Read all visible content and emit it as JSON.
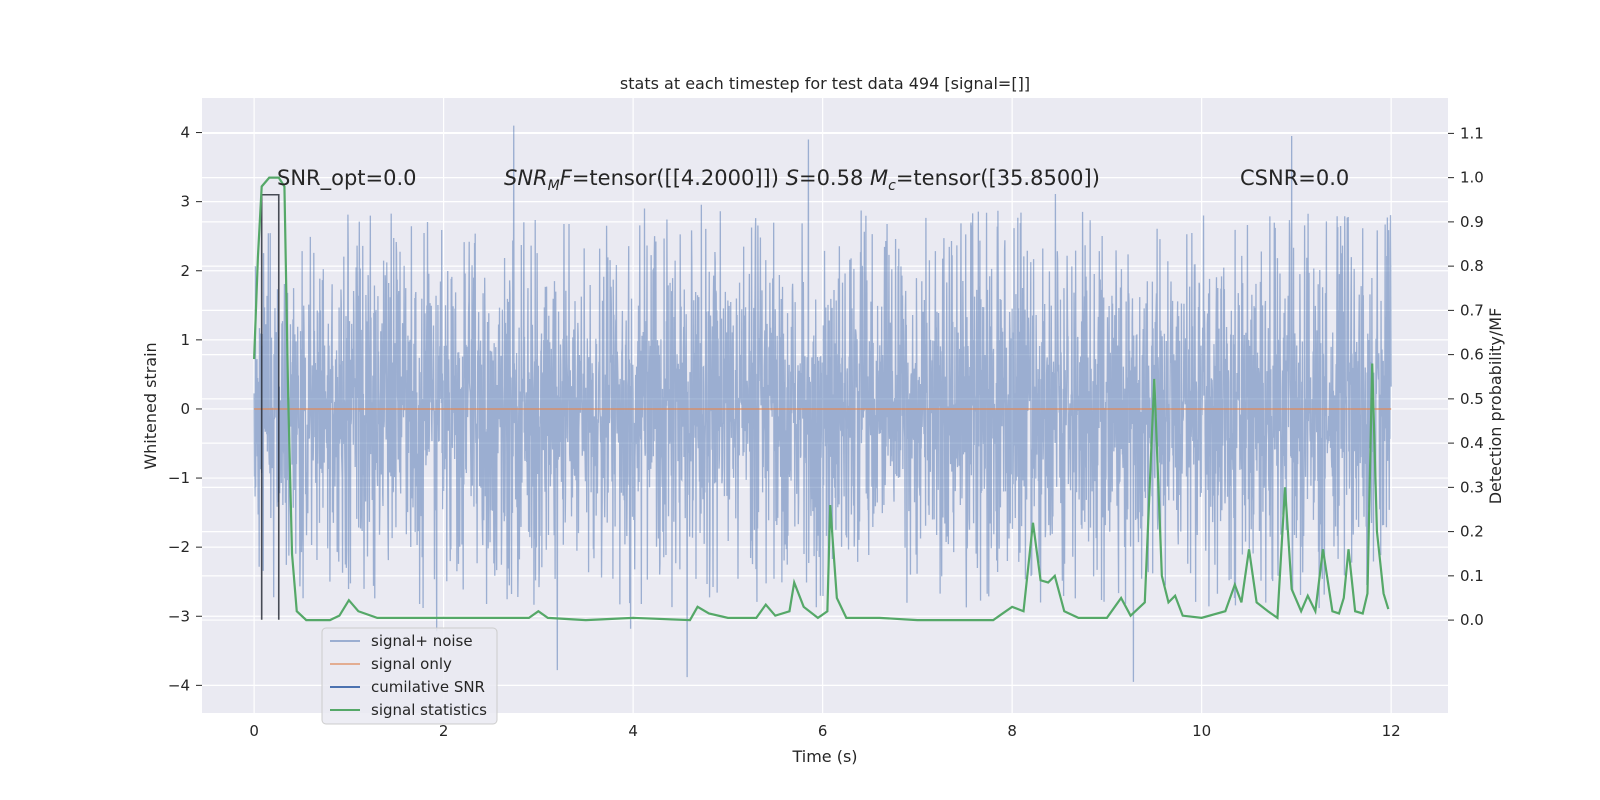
{
  "chart_data": {
    "type": "line",
    "title": "stats at each timestep for test data 494 [signal=[]]",
    "xlabel": "Time (s)",
    "ylabel": "Whitened strain",
    "y2label": "Detection probability/MF",
    "xlim": [
      -0.55,
      12.6
    ],
    "ylim": [
      -4.4,
      4.5
    ],
    "y2lim": [
      -0.21,
      1.18
    ],
    "x_ticks": [
      0,
      2,
      4,
      6,
      8,
      10,
      12
    ],
    "x_tick_labels": [
      "0",
      "2",
      "4",
      "6",
      "8",
      "10",
      "12"
    ],
    "y_ticks": [
      -4,
      -3,
      -2,
      -1,
      0,
      1,
      2,
      3,
      4
    ],
    "y_tick_labels": [
      "−4",
      "−3",
      "−2",
      "−1",
      "0",
      "1",
      "2",
      "3",
      "4"
    ],
    "y2_ticks": [
      0.0,
      0.1,
      0.2,
      0.3,
      0.4,
      0.5,
      0.6,
      0.7,
      0.8,
      0.9,
      1.0,
      1.1
    ],
    "y2_tick_labels": [
      "0.0",
      "0.1",
      "0.2",
      "0.3",
      "0.4",
      "0.5",
      "0.6",
      "0.7",
      "0.8",
      "0.9",
      "1.0",
      "1.1"
    ],
    "grid": true,
    "legend_position": "lower-left",
    "annotations": [
      {
        "text": "SNR_opt=0.0"
      },
      {
        "text": "SNRₘF=tensor([[4.2000]])  S=0.58   Mᶜ=tensor([35.8500])"
      },
      {
        "text": "CSNR=0.0"
      }
    ],
    "series": [
      {
        "name": "signal+ noise",
        "color": "#4c72b0",
        "kind": "noise",
        "t_range": [
          0,
          12
        ],
        "typical_range": [
          -1.4,
          1.4
        ],
        "extremes_min": -3.9,
        "extremes_max": 4.1,
        "notable_peaks": [
          {
            "t": 2.74,
            "y": 4.1
          },
          {
            "t": 5.85,
            "y": 3.9
          },
          {
            "t": 10.95,
            "y": 3.95
          },
          {
            "t": 9.28,
            "y": -3.95
          },
          {
            "t": 4.57,
            "y": -3.88
          },
          {
            "t": 3.2,
            "y": -3.78
          }
        ]
      },
      {
        "name": "signal only",
        "color": "#dd8452",
        "values": [
          [
            0,
            0
          ],
          [
            12,
            0
          ]
        ]
      },
      {
        "name": "cumilative SNR",
        "color": "#4c72b0",
        "values": [
          [
            0.08,
            -3.05
          ],
          [
            0.08,
            3.1
          ],
          [
            0.26,
            3.1
          ],
          [
            0.26,
            -3.05
          ]
        ]
      },
      {
        "name": "signal statistics",
        "color": "#55a868",
        "axis": "right",
        "values": [
          [
            0.0,
            0.59
          ],
          [
            0.04,
            0.82
          ],
          [
            0.08,
            0.98
          ],
          [
            0.16,
            1.0
          ],
          [
            0.26,
            1.0
          ],
          [
            0.32,
            0.98
          ],
          [
            0.36,
            0.5
          ],
          [
            0.4,
            0.15
          ],
          [
            0.45,
            0.02
          ],
          [
            0.55,
            0.0
          ],
          [
            0.8,
            0.0
          ],
          [
            0.9,
            0.01
          ],
          [
            1.0,
            0.045
          ],
          [
            1.1,
            0.02
          ],
          [
            1.3,
            0.005
          ],
          [
            1.6,
            0.005
          ],
          [
            2.0,
            0.005
          ],
          [
            2.5,
            0.005
          ],
          [
            2.9,
            0.005
          ],
          [
            3.0,
            0.02
          ],
          [
            3.1,
            0.005
          ],
          [
            3.5,
            0.0
          ],
          [
            4.0,
            0.005
          ],
          [
            4.6,
            0.0
          ],
          [
            4.68,
            0.03
          ],
          [
            4.8,
            0.015
          ],
          [
            5.0,
            0.005
          ],
          [
            5.3,
            0.005
          ],
          [
            5.4,
            0.035
          ],
          [
            5.5,
            0.01
          ],
          [
            5.65,
            0.02
          ],
          [
            5.7,
            0.085
          ],
          [
            5.8,
            0.03
          ],
          [
            5.95,
            0.005
          ],
          [
            6.05,
            0.02
          ],
          [
            6.08,
            0.26
          ],
          [
            6.15,
            0.05
          ],
          [
            6.25,
            0.005
          ],
          [
            6.4,
            0.005
          ],
          [
            6.6,
            0.005
          ],
          [
            7.0,
            0.0
          ],
          [
            7.8,
            0.0
          ],
          [
            7.9,
            0.015
          ],
          [
            8.0,
            0.03
          ],
          [
            8.12,
            0.02
          ],
          [
            8.22,
            0.22
          ],
          [
            8.3,
            0.09
          ],
          [
            8.38,
            0.085
          ],
          [
            8.45,
            0.1
          ],
          [
            8.55,
            0.02
          ],
          [
            8.7,
            0.005
          ],
          [
            9.0,
            0.005
          ],
          [
            9.15,
            0.05
          ],
          [
            9.25,
            0.01
          ],
          [
            9.4,
            0.04
          ],
          [
            9.5,
            0.545
          ],
          [
            9.58,
            0.1
          ],
          [
            9.65,
            0.04
          ],
          [
            9.72,
            0.055
          ],
          [
            9.8,
            0.01
          ],
          [
            10.0,
            0.005
          ],
          [
            10.25,
            0.02
          ],
          [
            10.35,
            0.08
          ],
          [
            10.42,
            0.04
          ],
          [
            10.5,
            0.16
          ],
          [
            10.58,
            0.04
          ],
          [
            10.7,
            0.02
          ],
          [
            10.8,
            0.005
          ],
          [
            10.88,
            0.3
          ],
          [
            10.95,
            0.07
          ],
          [
            11.05,
            0.02
          ],
          [
            11.12,
            0.055
          ],
          [
            11.2,
            0.02
          ],
          [
            11.28,
            0.16
          ],
          [
            11.38,
            0.02
          ],
          [
            11.45,
            0.015
          ],
          [
            11.5,
            0.05
          ],
          [
            11.55,
            0.16
          ],
          [
            11.62,
            0.02
          ],
          [
            11.7,
            0.015
          ],
          [
            11.75,
            0.06
          ],
          [
            11.8,
            0.58
          ],
          [
            11.85,
            0.2
          ],
          [
            11.92,
            0.06
          ],
          [
            11.97,
            0.025
          ]
        ]
      }
    ]
  }
}
